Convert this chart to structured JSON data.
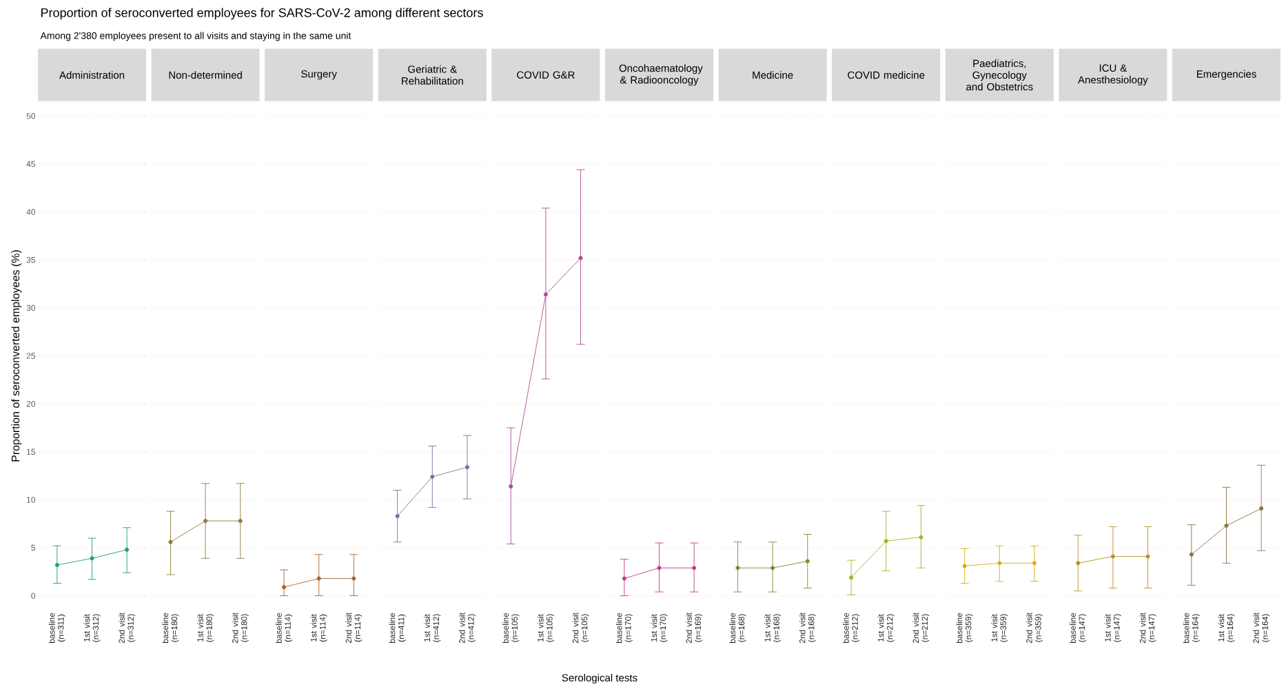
{
  "chart_data": [
    {
      "type": "line",
      "annotations": [
        "Proportion of seroconverted employees for SARS-CoV-2 among different sectors",
        "Among 2'380 employees present to all visits and staying in the same unit",
        "Serological tests"
      ],
      "ylabel": "Proportion of seroconverted employees (%)",
      "title": "Administration",
      "categories": [
        "baseline (n=311)",
        "1st visit (n=312)",
        "2nd visit (n=312)"
      ],
      "values": [
        3.2,
        3.9,
        4.8
      ],
      "errors": [
        [
          1.3,
          5.2
        ],
        [
          1.7,
          6.0
        ],
        [
          2.4,
          7.1
        ]
      ],
      "color": "#1b9e77",
      "ylim": [
        0,
        50
      ],
      "yticks": [
        0,
        5,
        10,
        15,
        20,
        25,
        30,
        35,
        40,
        45,
        50
      ],
      "grid": "y",
      "marker": "circle"
    },
    {
      "type": "line",
      "title": "Non-determined",
      "categories": [
        "baseline (n=180)",
        "1st visit (n=180)",
        "2nd visit (n=180)"
      ],
      "values": [
        5.6,
        7.8,
        7.8
      ],
      "errors": [
        [
          2.2,
          8.8
        ],
        [
          3.9,
          11.7
        ],
        [
          3.9,
          11.7
        ]
      ],
      "color": "#8c7a3a",
      "ylim": [
        0,
        50
      ],
      "yticks": [
        0,
        5,
        10,
        15,
        20,
        25,
        30,
        35,
        40,
        45,
        50
      ],
      "grid": "y",
      "marker": "circle",
      "tick_labels": "x"
    },
    {
      "type": "line",
      "title": "Surgery",
      "categories": [
        "baseline (n=114)",
        "1st visit (n=114)",
        "2nd visit (n=114)"
      ],
      "values": [
        0.9,
        1.8,
        1.8
      ],
      "errors": [
        [
          0,
          2.7
        ],
        [
          0,
          4.3
        ],
        [
          0,
          4.3
        ]
      ],
      "color": "#a6612e",
      "ylim": [
        0,
        50
      ],
      "yticks": [
        0,
        5,
        10,
        15,
        20,
        25,
        30,
        35,
        40,
        45,
        50
      ],
      "grid": "y",
      "marker": "circle",
      "tick_labels": "x"
    },
    {
      "type": "line",
      "title": "Geriatric & Rehabilitation",
      "categories": [
        "baseline (n=411)",
        "1st visit (n=412)",
        "2nd visit (n=412)"
      ],
      "values": [
        8.3,
        12.4,
        13.4
      ],
      "errors": [
        [
          5.6,
          11.0
        ],
        [
          9.2,
          15.6
        ],
        [
          10.1,
          16.7
        ]
      ],
      "color": "#7670a0",
      "ylim": [
        0,
        50
      ],
      "yticks": [
        0,
        5,
        10,
        15,
        20,
        25,
        30,
        35,
        40,
        45,
        50
      ],
      "grid": "y",
      "marker": "circle",
      "tick_labels": "x"
    },
    {
      "type": "line",
      "title": "COVID G&R",
      "categories": [
        "baseline (n=105)",
        "1st visit (n=105)",
        "2nd visit (n=105)"
      ],
      "values": [
        11.4,
        31.4,
        35.2
      ],
      "errors": [
        [
          5.4,
          17.5
        ],
        [
          22.6,
          40.4
        ],
        [
          26.2,
          44.4
        ]
      ],
      "color": "#b0489a",
      "ylim": [
        0,
        50
      ],
      "yticks": [
        0,
        5,
        10,
        15,
        20,
        25,
        30,
        35,
        40,
        45,
        50
      ],
      "grid": "y",
      "marker": "circle",
      "tick_labels": "x"
    },
    {
      "type": "line",
      "title": "Oncohaematology & Radiooncology",
      "categories": [
        "baseline (n=170)",
        "1st visit (n=170)",
        "2nd visit (n=169)"
      ],
      "values": [
        1.8,
        2.9,
        2.9
      ],
      "errors": [
        [
          0,
          3.8
        ],
        [
          0.4,
          5.5
        ],
        [
          0.4,
          5.5
        ]
      ],
      "color": "#c03c88",
      "ylim": [
        0,
        50
      ],
      "yticks": [
        0,
        5,
        10,
        15,
        20,
        25,
        30,
        35,
        40,
        45,
        50
      ],
      "grid": "y",
      "marker": "circle",
      "tick_labels": "x"
    },
    {
      "type": "line",
      "title": "Medicine",
      "categories": [
        "baseline (n=168)",
        "1st visit (n=168)",
        "2nd visit (n=168)"
      ],
      "values": [
        2.9,
        2.9,
        3.6
      ],
      "errors": [
        [
          0.4,
          5.6
        ],
        [
          0.4,
          5.6
        ],
        [
          0.8,
          6.4
        ]
      ],
      "color": "#7a8a30",
      "ylim": [
        0,
        50
      ],
      "yticks": [
        0,
        5,
        10,
        15,
        20,
        25,
        30,
        35,
        40,
        45,
        50
      ],
      "grid": "y",
      "marker": "circle",
      "tick_labels": "x"
    },
    {
      "type": "line",
      "title": "COVID medicine",
      "categories": [
        "baseline (n=212)",
        "1st visit (n=212)",
        "2nd visit (n=212)"
      ],
      "values": [
        1.9,
        5.7,
        6.1
      ],
      "errors": [
        [
          0.1,
          3.7
        ],
        [
          2.6,
          8.8
        ],
        [
          2.9,
          9.4
        ]
      ],
      "color": "#a8b020",
      "ylim": [
        0,
        50
      ],
      "yticks": [
        0,
        5,
        10,
        15,
        20,
        25,
        30,
        35,
        40,
        45,
        50
      ],
      "grid": "y",
      "marker": "circle",
      "tick_labels": "x"
    },
    {
      "type": "line",
      "title": "Paediatrics, Gynecology and Obstetrics",
      "categories": [
        "baseline (n=359)",
        "1st visit (n=359)",
        "2nd visit (n=359)"
      ],
      "values": [
        3.1,
        3.4,
        3.4
      ],
      "errors": [
        [
          1.3,
          4.9
        ],
        [
          1.5,
          5.2
        ],
        [
          1.5,
          5.2
        ]
      ],
      "color": "#d4b010",
      "ylim": [
        0,
        50
      ],
      "yticks": [
        0,
        5,
        10,
        15,
        20,
        25,
        30,
        35,
        40,
        45,
        50
      ],
      "grid": "y",
      "marker": "circle",
      "tick_labels": "x"
    },
    {
      "type": "line",
      "title": "ICU & Anesthesiology",
      "categories": [
        "baseline (n=147)",
        "1st visit (n=147)",
        "2nd visit (n=147)"
      ],
      "values": [
        3.4,
        4.1,
        4.1
      ],
      "errors": [
        [
          0.5,
          6.3
        ],
        [
          0.8,
          7.2
        ],
        [
          0.8,
          7.2
        ]
      ],
      "color": "#b8901e",
      "ylim": [
        0,
        50
      ],
      "yticks": [
        0,
        5,
        10,
        15,
        20,
        25,
        30,
        35,
        40,
        45,
        50
      ],
      "grid": "y",
      "marker": "circle",
      "tick_labels": "x"
    },
    {
      "type": "line",
      "title": "Emergencies",
      "categories": [
        "baseline (n=164)",
        "1st visit (n=164)",
        "2nd visit (n=164)"
      ],
      "values": [
        4.3,
        7.3,
        9.1
      ],
      "errors": [
        [
          1.1,
          7.4
        ],
        [
          3.4,
          11.3
        ],
        [
          4.7,
          13.6
        ]
      ],
      "color": "#8a7040",
      "ylim": [
        0,
        50
      ],
      "yticks": [
        0,
        5,
        10,
        15,
        20,
        25,
        30,
        35,
        40,
        45,
        50
      ],
      "grid": "y",
      "marker": "circle",
      "tick_labels": "x"
    }
  ]
}
